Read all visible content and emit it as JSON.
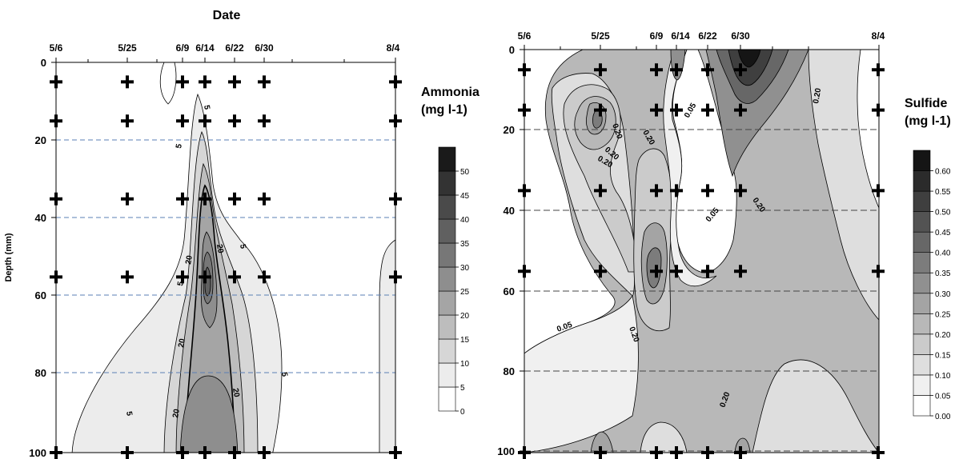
{
  "chart_data": [
    {
      "type": "heatmap",
      "title": "Date",
      "ylabel": "Depth (mm)",
      "x_tick_labels": [
        "5/6",
        "5/25",
        "6/9",
        "6/14",
        "6/22",
        "6/30",
        "8/4"
      ],
      "y_ticks": [
        0,
        20,
        40,
        60,
        80,
        100
      ],
      "ylim": [
        0,
        100
      ],
      "colorbar": {
        "title_line1": "Ammonia",
        "title_line2": "(mg l-1)",
        "levels": [
          0,
          5,
          10,
          15,
          20,
          25,
          30,
          35,
          40,
          45,
          50
        ],
        "level_labels": [
          "0",
          "5",
          "10",
          "15",
          "20",
          "25",
          "30",
          "35",
          "40",
          "45",
          "50"
        ],
        "colors": [
          "#ffffff",
          "#ececec",
          "#d6d6d6",
          "#bdbdbd",
          "#a5a5a5",
          "#8e8e8e",
          "#777777",
          "#606060",
          "#4a4a4a",
          "#333333",
          "#1a1a1a"
        ]
      },
      "contour_labels": [
        "5",
        "5",
        "5",
        "5",
        "5",
        "5",
        "20",
        "20",
        "20",
        "20",
        "20"
      ],
      "sample_marker_depths": [
        5,
        15,
        35,
        55,
        100
      ],
      "grid": "dashed horizontal"
    },
    {
      "type": "heatmap",
      "title": "",
      "ylabel": "",
      "x_tick_labels": [
        "5/6",
        "5/25",
        "6/9",
        "6/14",
        "6/22",
        "6/30",
        "8/4"
      ],
      "y_ticks": [
        0,
        20,
        40,
        60,
        80,
        100
      ],
      "ylim": [
        0,
        100
      ],
      "colorbar": {
        "title_line1": "Sulfide",
        "title_line2": "(mg l-1)",
        "levels": [
          0.0,
          0.05,
          0.1,
          0.15,
          0.2,
          0.25,
          0.3,
          0.35,
          0.4,
          0.45,
          0.5,
          0.55,
          0.6
        ],
        "level_labels": [
          "0.00",
          "0.05",
          "0.10",
          "0.15",
          "0.20",
          "0.25",
          "0.30",
          "0.35",
          "0.40",
          "0.45",
          "0.50",
          "0.55",
          "0.60"
        ],
        "colors": [
          "#ffffff",
          "#f0f0f0",
          "#dedede",
          "#cbcbcb",
          "#b8b8b8",
          "#a4a4a4",
          "#909090",
          "#7c7c7c",
          "#676767",
          "#535353",
          "#3f3f3f",
          "#2b2b2b",
          "#151515"
        ]
      },
      "contour_labels": [
        "0.20",
        "0.20",
        "0.20",
        "0.20",
        "0.20",
        "0.20",
        "0.20",
        "0.05",
        "0.05",
        "0.05",
        "0.20"
      ],
      "sample_marker_depths": [
        5,
        15,
        35,
        55,
        100
      ],
      "grid": "dashed horizontal"
    }
  ]
}
